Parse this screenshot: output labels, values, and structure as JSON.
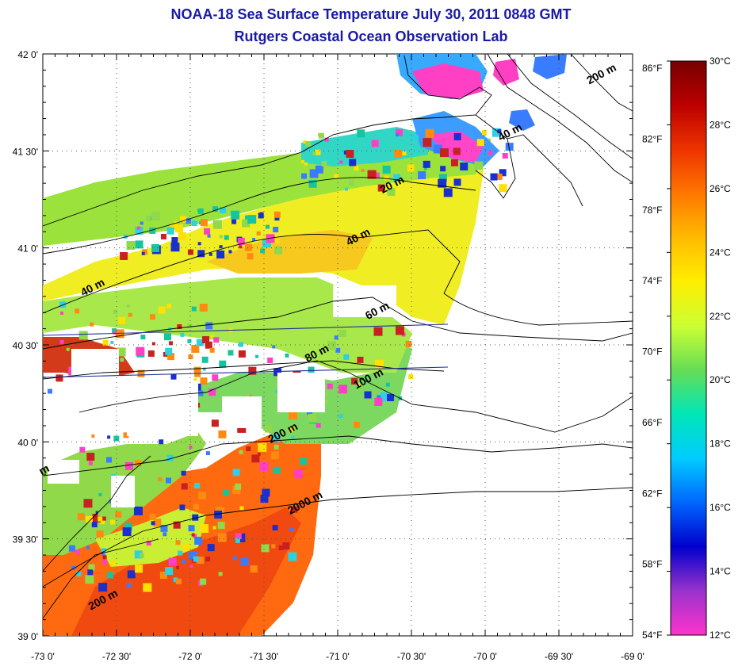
{
  "title": "NOAA-18 Sea Surface Temperature July 30, 2011 0848 GMT",
  "subtitle": "Rutgers Coastal Ocean Observation Lab",
  "map": {
    "lat_range": [
      39.0,
      42.0
    ],
    "lon_range": [
      -73.0,
      -69.0
    ],
    "lat_ticks": [
      {
        "value": 42.0,
        "label": "42 0'"
      },
      {
        "value": 41.5,
        "label": "41 30'"
      },
      {
        "value": 41.0,
        "label": "41 0'"
      },
      {
        "value": 40.5,
        "label": "40 30'"
      },
      {
        "value": 40.0,
        "label": "40 0'"
      },
      {
        "value": 39.5,
        "label": "39 30'"
      },
      {
        "value": 39.0,
        "label": "39 0'"
      }
    ],
    "lon_ticks": [
      {
        "value": -73.0,
        "label": "-73 0'"
      },
      {
        "value": -72.5,
        "label": "-72 30'"
      },
      {
        "value": -72.0,
        "label": "-72 0'"
      },
      {
        "value": -71.5,
        "label": "-71 30'"
      },
      {
        "value": -71.0,
        "label": "-71 0'"
      },
      {
        "value": -70.5,
        "label": "-70 30'"
      },
      {
        "value": -70.0,
        "label": "-70 0'"
      },
      {
        "value": -69.5,
        "label": "-69 30'"
      },
      {
        "value": -69.0,
        "label": "-69 0'"
      }
    ],
    "fahrenheit_ticks": [
      "86°F",
      "82°F",
      "78°F",
      "74°F",
      "70°F",
      "66°F",
      "62°F",
      "58°F",
      "54°F"
    ],
    "depth_labels": [
      {
        "text": "200 m",
        "lon": -69.2,
        "lat": 41.88
      },
      {
        "text": "40 m",
        "lon": -69.82,
        "lat": 41.58
      },
      {
        "text": "20 m",
        "lon": -70.62,
        "lat": 41.31
      },
      {
        "text": "40 m",
        "lon": -70.85,
        "lat": 41.04
      },
      {
        "text": "40 m",
        "lon": -72.65,
        "lat": 40.78
      },
      {
        "text": "60 m",
        "lon": -70.72,
        "lat": 40.66
      },
      {
        "text": "80 m",
        "lon": -71.13,
        "lat": 40.44
      },
      {
        "text": "100 m",
        "lon": -70.78,
        "lat": 40.31
      },
      {
        "text": "200 m",
        "lon": -71.36,
        "lat": 40.03
      },
      {
        "text": "2000 m",
        "lon": -71.21,
        "lat": 39.67
      },
      {
        "text": "200 m",
        "lon": -72.58,
        "lat": 39.17
      },
      {
        "text": "m",
        "lon": -72.98,
        "lat": 39.84
      }
    ]
  },
  "colorbar": {
    "celsius_ticks": [
      "30°C",
      "28°C",
      "26°C",
      "24°C",
      "22°C",
      "20°C",
      "18°C",
      "16°C",
      "14°C",
      "12°C"
    ],
    "colors": [
      "#ff33cc",
      "#9933cc",
      "#0000cc",
      "#0066ff",
      "#00ccff",
      "#00e6b8",
      "#66dd55",
      "#ccff33",
      "#ffee00",
      "#ffbb00",
      "#ff7700",
      "#ee3300",
      "#bb0000",
      "#770000"
    ]
  }
}
